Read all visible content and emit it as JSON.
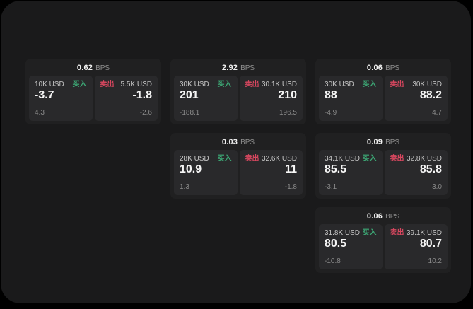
{
  "labels": {
    "bps": "BPS",
    "buy": "买入",
    "sell": "卖出"
  },
  "colors": {
    "buy": "#3dab77",
    "sell": "#d8475f",
    "panel_bg": "#1a1a1b",
    "card_bg": "#202021",
    "subpanel_bg": "#29292b"
  },
  "cards": [
    {
      "bps": "0.62",
      "buy": {
        "amount": "10K USD",
        "price": "-3.7",
        "delta": "4.3"
      },
      "sell": {
        "amount": "5.5K USD",
        "price": "-1.8",
        "delta": "-2.6"
      }
    },
    {
      "bps": "2.92",
      "buy": {
        "amount": "30K USD",
        "price": "201",
        "delta": "-188.1"
      },
      "sell": {
        "amount": "30.1K USD",
        "price": "210",
        "delta": "196.5"
      }
    },
    {
      "bps": "0.06",
      "buy": {
        "amount": "30K USD",
        "price": "88",
        "delta": "-4.9"
      },
      "sell": {
        "amount": "30K USD",
        "price": "88.2",
        "delta": "4.7"
      }
    },
    {
      "bps": "0.03",
      "buy": {
        "amount": "28K USD",
        "price": "10.9",
        "delta": "1.3"
      },
      "sell": {
        "amount": "32.6K USD",
        "price": "11",
        "delta": "-1.8"
      }
    },
    {
      "bps": "0.09",
      "buy": {
        "amount": "34.1K USD",
        "price": "85.5",
        "delta": "-3.1"
      },
      "sell": {
        "amount": "32.8K USD",
        "price": "85.8",
        "delta": "3.0"
      }
    },
    {
      "bps": "0.06",
      "buy": {
        "amount": "31.8K USD",
        "price": "80.5",
        "delta": "-10.8"
      },
      "sell": {
        "amount": "39.1K USD",
        "price": "80.7",
        "delta": "10.2"
      }
    }
  ]
}
